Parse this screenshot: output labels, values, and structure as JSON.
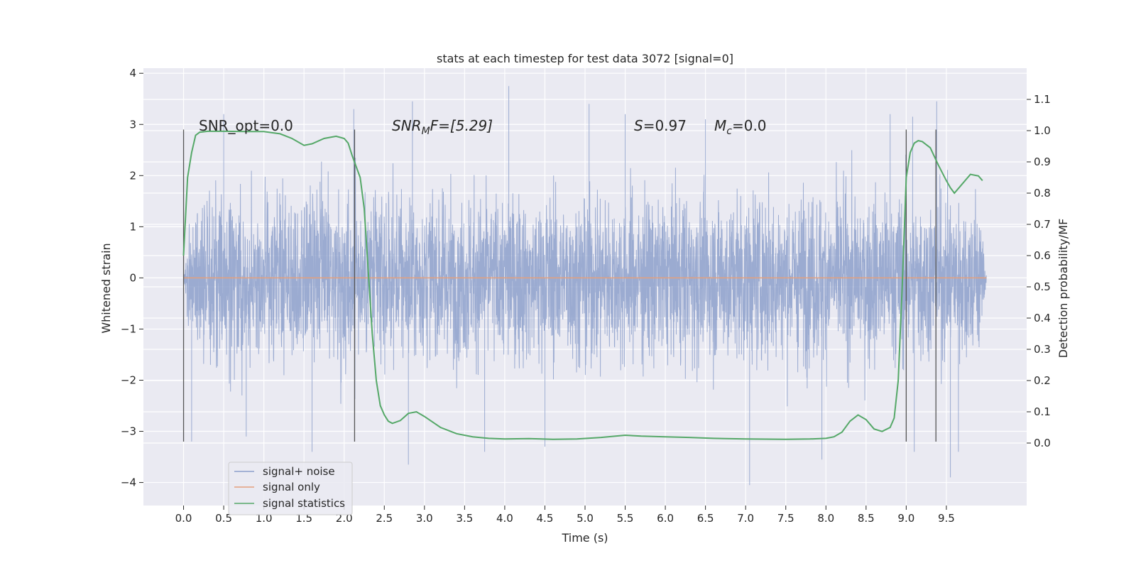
{
  "chart_data": {
    "type": "line",
    "title": "stats at each timestep for test data 3072 [signal=0]",
    "xlabel": "Time (s)",
    "ylabel_left": "Whitened strain",
    "ylabel_right": "Detection probability/MF",
    "xlim": [
      -0.5,
      10.5
    ],
    "ylim_left": [
      -4.45,
      4.1
    ],
    "ylim_right": [
      -0.2,
      1.2
    ],
    "x_ticks": [
      "0.0",
      "0.5",
      "1.0",
      "1.5",
      "2.0",
      "2.5",
      "3.0",
      "3.5",
      "4.0",
      "4.5",
      "5.0",
      "5.5",
      "6.0",
      "6.5",
      "7.0",
      "7.5",
      "8.0",
      "8.5",
      "9.0",
      "9.5"
    ],
    "y_ticks_left": [
      "−4",
      "−3",
      "−2",
      "−1",
      "0",
      "1",
      "2",
      "3",
      "4"
    ],
    "y_ticks_right": [
      "0.0",
      "0.1",
      "0.2",
      "0.3",
      "0.4",
      "0.5",
      "0.6",
      "0.7",
      "0.8",
      "0.9",
      "1.0",
      "1.1"
    ],
    "grid": true,
    "annotations": {
      "snr_opt": "SNR_opt=0.0",
      "snr_mf_name": "SNR",
      "snr_mf_sub": "M",
      "snr_mf_rest": "F=[5.29]",
      "s_name": "S",
      "s_rest": "=0.97",
      "mc_name": "M",
      "mc_sub": "c",
      "mc_rest": "=0.0"
    },
    "legend": {
      "placement": "lower-left",
      "entries": [
        "signal+ noise",
        "signal only",
        "signal statistics"
      ]
    },
    "series": [
      {
        "name": "signal+ noise",
        "axis": "left",
        "color": "#8da0cb",
        "noise_time_range": [
          0.0,
          10.0
        ],
        "typical_amplitude": 1.4,
        "spikes": [
          {
            "x": 0.1,
            "y": -3.2
          },
          {
            "x": 0.5,
            "y": 3.2
          },
          {
            "x": 0.78,
            "y": -3.1
          },
          {
            "x": 1.6,
            "y": -3.4
          },
          {
            "x": 2.12,
            "y": 3.3
          },
          {
            "x": 2.85,
            "y": 3.45
          },
          {
            "x": 2.8,
            "y": -3.65
          },
          {
            "x": 3.75,
            "y": -3.4
          },
          {
            "x": 4.05,
            "y": 3.75
          },
          {
            "x": 4.5,
            "y": -3.3
          },
          {
            "x": 5.05,
            "y": 3.4
          },
          {
            "x": 5.5,
            "y": 3.2
          },
          {
            "x": 6.5,
            "y": 3.1
          },
          {
            "x": 7.05,
            "y": -4.05
          },
          {
            "x": 7.95,
            "y": -3.55
          },
          {
            "x": 8.8,
            "y": 3.2
          },
          {
            "x": 9.08,
            "y": 3.15
          },
          {
            "x": 9.1,
            "y": -3.4
          },
          {
            "x": 9.38,
            "y": 3.45
          },
          {
            "x": 9.55,
            "y": -3.9
          },
          {
            "x": 9.65,
            "y": -3.4
          }
        ]
      },
      {
        "name": "signal only",
        "axis": "left",
        "color": "#e5a07c",
        "x": [
          0.0,
          10.0
        ],
        "y": [
          0.0,
          0.0
        ]
      },
      {
        "name": "signal statistics",
        "axis": "right",
        "color": "#55a868",
        "x": [
          0.0,
          0.05,
          0.1,
          0.15,
          0.2,
          0.3,
          0.5,
          0.8,
          1.0,
          1.2,
          1.35,
          1.5,
          1.6,
          1.75,
          1.9,
          2.0,
          2.05,
          2.1,
          2.2,
          2.25,
          2.3,
          2.35,
          2.4,
          2.45,
          2.5,
          2.55,
          2.6,
          2.7,
          2.8,
          2.9,
          3.0,
          3.2,
          3.4,
          3.6,
          3.8,
          4.0,
          4.3,
          4.6,
          4.9,
          5.2,
          5.5,
          5.7,
          6.0,
          6.3,
          6.6,
          7.0,
          7.5,
          7.8,
          8.0,
          8.1,
          8.2,
          8.3,
          8.4,
          8.5,
          8.6,
          8.7,
          8.8,
          8.85,
          8.9,
          8.95,
          9.0,
          9.05,
          9.1,
          9.15,
          9.2,
          9.3,
          9.4,
          9.5,
          9.55,
          9.6,
          9.7,
          9.8,
          9.9,
          9.95
        ],
        "y": [
          0.6,
          0.85,
          0.93,
          0.985,
          0.995,
          0.998,
          0.998,
          0.997,
          0.997,
          0.99,
          0.975,
          0.953,
          0.958,
          0.975,
          0.982,
          0.975,
          0.96,
          0.92,
          0.85,
          0.75,
          0.55,
          0.35,
          0.2,
          0.12,
          0.09,
          0.07,
          0.063,
          0.072,
          0.095,
          0.1,
          0.085,
          0.05,
          0.03,
          0.02,
          0.015,
          0.013,
          0.014,
          0.012,
          0.013,
          0.018,
          0.025,
          0.022,
          0.02,
          0.018,
          0.015,
          0.013,
          0.012,
          0.013,
          0.015,
          0.02,
          0.035,
          0.07,
          0.09,
          0.075,
          0.045,
          0.037,
          0.05,
          0.08,
          0.2,
          0.5,
          0.85,
          0.93,
          0.96,
          0.968,
          0.965,
          0.945,
          0.89,
          0.84,
          0.817,
          0.8,
          0.83,
          0.86,
          0.855,
          0.84
        ]
      }
    ],
    "vertical_markers_x": [
      0.0,
      2.13,
      9.0,
      9.37
    ]
  }
}
